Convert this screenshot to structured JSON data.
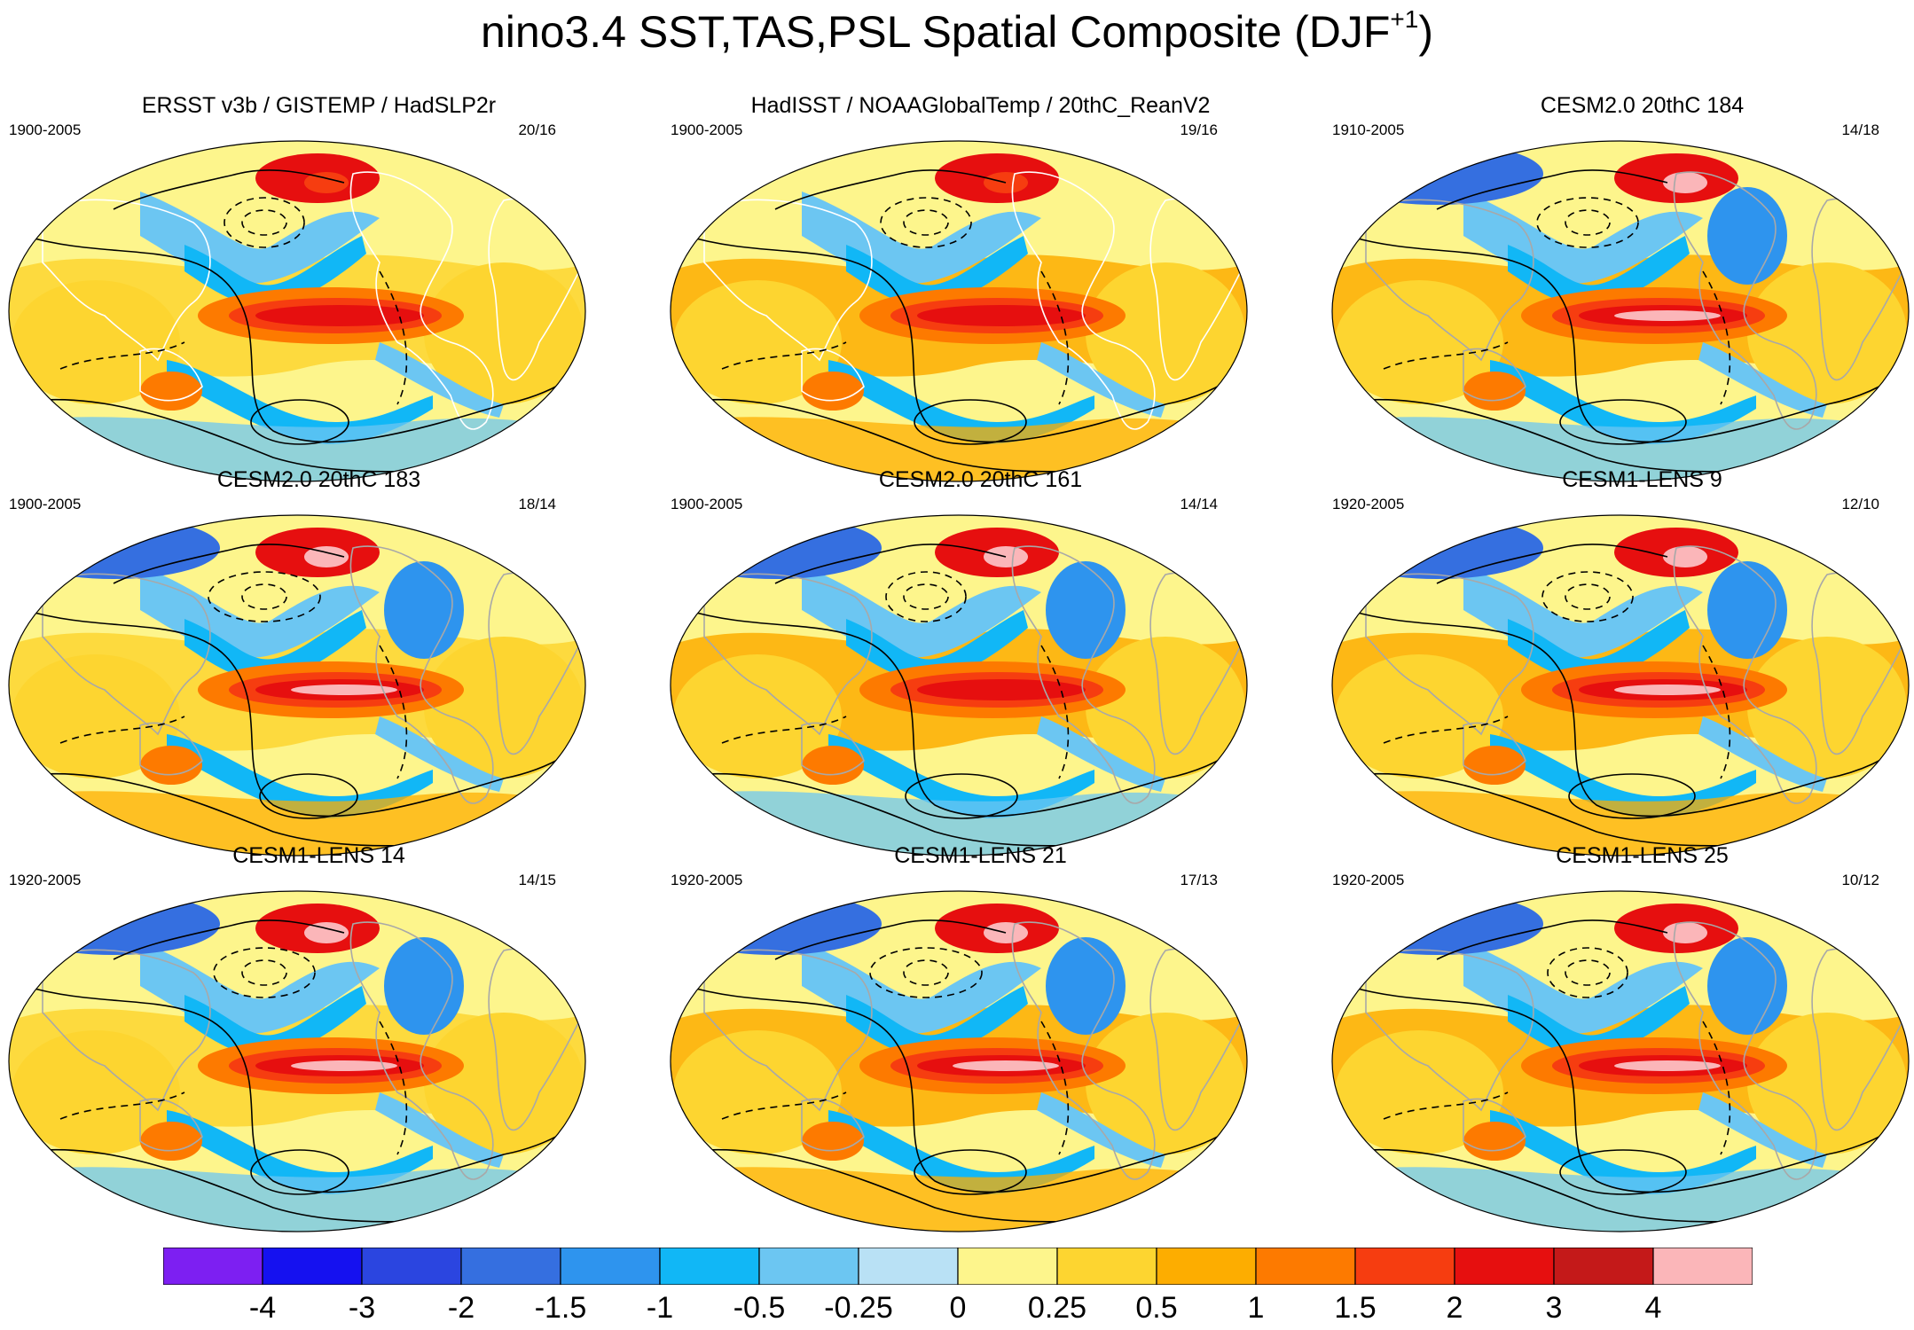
{
  "figure": {
    "title_main": "nino3.4 SST,TAS,PSL Spatial Composite (DJF",
    "title_sup": "+1",
    "title_end": ")"
  },
  "panels": [
    {
      "title": "ERSST v3b / GISTEMP / HadSLP2r",
      "period": "1900-2005",
      "count": "20/16",
      "variant": 0
    },
    {
      "title": "HadISST / NOAAGlobalTemp / 20thC_ReanV2",
      "period": "1900-2005",
      "count": "19/16",
      "variant": 1
    },
    {
      "title": "CESM2.0 20thC 184",
      "period": "1910-2005",
      "count": "14/18",
      "variant": 2
    },
    {
      "title": "CESM2.0 20thC 183",
      "period": "1900-2005",
      "count": "18/14",
      "variant": 3
    },
    {
      "title": "CESM2.0 20thC 161",
      "period": "1900-2005",
      "count": "14/14",
      "variant": 4
    },
    {
      "title": "CESM1-LENS 9",
      "period": "1920-2005",
      "count": "12/10",
      "variant": 5
    },
    {
      "title": "CESM1-LENS 14",
      "period": "1920-2005",
      "count": "14/15",
      "variant": 6
    },
    {
      "title": "CESM1-LENS 21",
      "period": "1920-2005",
      "count": "17/13",
      "variant": 7
    },
    {
      "title": "CESM1-LENS 25",
      "period": "1920-2005",
      "count": "10/12",
      "variant": 8
    }
  ],
  "colorbar": {
    "labels": [
      "-4",
      "-3",
      "-2",
      "-1.5",
      "-1",
      "-0.5",
      "-0.25",
      "0",
      "0.25",
      "0.5",
      "1",
      "1.5",
      "2",
      "3",
      "4"
    ],
    "colors": [
      "#7d1ff2",
      "#1511f0",
      "#2b45e0",
      "#356fe0",
      "#2e94ee",
      "#11b7f6",
      "#6cc6f2",
      "#b9e1f5",
      "#fdf58c",
      "#fdd530",
      "#fdad00",
      "#fd7a00",
      "#f63d10",
      "#e60f0f",
      "#c41919",
      "#fbb6b9"
    ]
  }
}
